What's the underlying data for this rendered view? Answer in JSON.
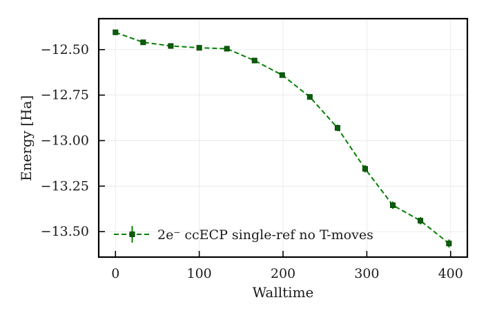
{
  "chart_data": {
    "type": "line",
    "xlabel": "Walltime",
    "ylabel": "Energy [Ha]",
    "xlim": [
      -20,
      420
    ],
    "ylim": [
      -13.64,
      -12.33
    ],
    "xticks": [
      0,
      100,
      200,
      300,
      400
    ],
    "xtick_labels": [
      "0",
      "100",
      "200",
      "300",
      "400"
    ],
    "yticks": [
      -12.5,
      -12.75,
      -13.0,
      -13.25,
      -13.5
    ],
    "ytick_labels": [
      "−12.50",
      "−12.75",
      "−13.00",
      "−13.25",
      "−13.50"
    ],
    "grid": true,
    "legend_position": "lower-left",
    "series": [
      {
        "name": "2e⁻ ccECP single-ref no T-moves",
        "color": "#008000",
        "marker": "square",
        "linestyle": "dashed",
        "x": [
          0,
          33,
          66,
          100,
          133,
          166,
          199,
          232,
          265,
          298,
          331,
          364,
          398
        ],
        "y": [
          -12.405,
          -12.46,
          -12.48,
          -12.49,
          -12.495,
          -12.56,
          -12.64,
          -12.76,
          -12.93,
          -13.155,
          -13.355,
          -13.44,
          -13.565
        ],
        "yerr": [
          0.008,
          0.008,
          0.008,
          0.008,
          0.008,
          0.01,
          0.012,
          0.015,
          0.018,
          0.02,
          0.02,
          0.02,
          0.022
        ]
      }
    ]
  }
}
